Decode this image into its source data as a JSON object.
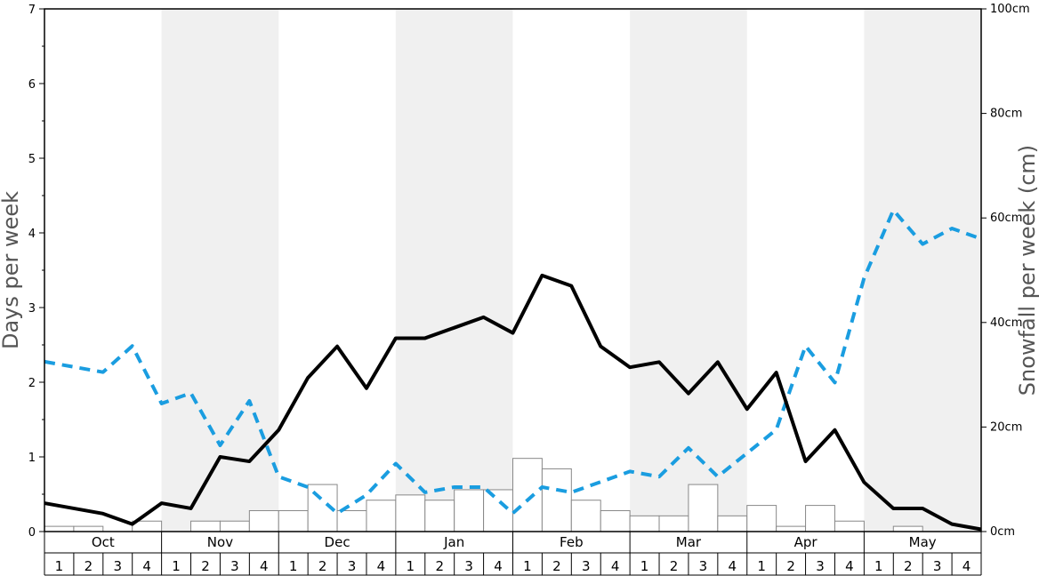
{
  "chart_data": {
    "type": "bar+line",
    "months": [
      "Oct",
      "Nov",
      "Dec",
      "Jan",
      "Feb",
      "Mar",
      "Apr",
      "May"
    ],
    "week_labels": [
      "1",
      "2",
      "3",
      "4"
    ],
    "left_axis": {
      "title": "Days per week",
      "range": [
        0,
        7
      ],
      "ticks": [
        "0",
        "1",
        "2",
        "3",
        "4",
        "5",
        "6",
        "7"
      ]
    },
    "right_axis": {
      "title": "Snowfall per week (cm)",
      "range": [
        0,
        100
      ],
      "ticks": [
        "0cm",
        "20cm",
        "40cm",
        "60cm",
        "80cm",
        "100cm"
      ]
    },
    "series": [
      {
        "kind": "bar",
        "axis": "right",
        "values": [
          1,
          1,
          0,
          2,
          0,
          2,
          2,
          4,
          4,
          9,
          4,
          6,
          7,
          6,
          8,
          8,
          14,
          12,
          6,
          4,
          3,
          3,
          9,
          3,
          5,
          1,
          5,
          2,
          0,
          1,
          0,
          0
        ]
      },
      {
        "kind": "line",
        "axis": "left",
        "color": "#000000",
        "dash": "solid",
        "values": [
          0.38,
          0.31,
          0.24,
          0.1,
          0.38,
          0.31,
          1.0,
          0.94,
          1.36,
          2.06,
          2.48,
          1.92,
          2.59,
          2.59,
          2.73,
          2.87,
          2.66,
          3.43,
          3.29,
          2.48,
          2.2,
          2.27,
          1.85,
          2.27,
          1.64,
          2.13,
          0.94,
          1.36,
          0.66,
          0.31,
          0.31,
          0.1,
          0.03
        ]
      },
      {
        "kind": "line",
        "axis": "right",
        "color": "#1a9de0",
        "dash": "dashed",
        "values": [
          32.5,
          31.5,
          30.5,
          35.5,
          24.5,
          26.5,
          16.5,
          25.0,
          10.5,
          8.5,
          3.5,
          7.0,
          13.0,
          7.5,
          8.5,
          8.5,
          3.5,
          8.5,
          7.5,
          9.5,
          11.5,
          10.5,
          16.0,
          10.5,
          15.0,
          19.5,
          35.5,
          28.5,
          48.5,
          61.5,
          55.0,
          58.0,
          56.0
        ]
      }
    ],
    "grid": false,
    "legend": "none",
    "colors": {
      "band_shade": "#f0f0f0",
      "bar_fill": "#ffffff",
      "bar_stroke": "#888888",
      "days_line": "#000000",
      "snow_line": "#1a9de0",
      "axis_title": "#555555"
    }
  }
}
